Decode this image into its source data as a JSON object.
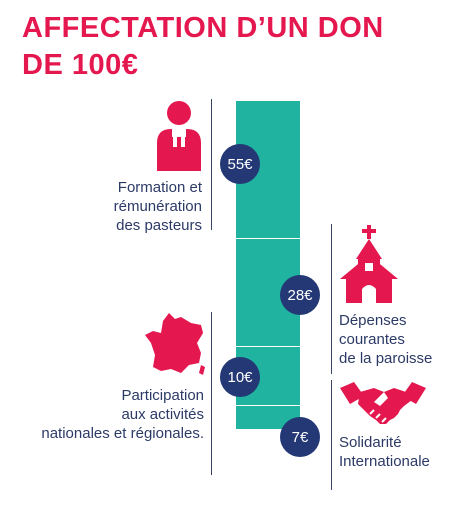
{
  "title": {
    "line1": "AFFECTATION D’UN DON",
    "line2": "DE 100€"
  },
  "colors": {
    "accent": "#e4174f",
    "bar": "#1fb3a0",
    "badge": "#233874",
    "text": "#2c3a66"
  },
  "items": [
    {
      "amount": "55€",
      "value": 55,
      "icon": "pastor-icon",
      "label": [
        "Formation et",
        "rémunération",
        "des pasteurs"
      ]
    },
    {
      "amount": "28€",
      "value": 28,
      "icon": "church-icon",
      "label": [
        "Dépenses",
        "courantes",
        "de la paroisse"
      ]
    },
    {
      "amount": "10€",
      "value": 10,
      "icon": "france-map-icon",
      "label": [
        "Participation",
        "aux activités",
        "nationales et régionales."
      ]
    },
    {
      "amount": "7€",
      "value": 7,
      "icon": "handshake-icon",
      "label": [
        "Solidarité",
        "Internationale"
      ]
    }
  ]
}
